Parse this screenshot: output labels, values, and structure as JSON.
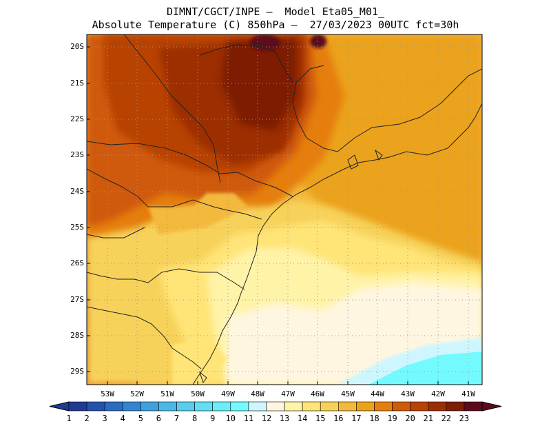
{
  "header": {
    "line1": "DIMNT/CGCT/INPE –  Model Eta05_M01_",
    "line2": "Absolute Temperature (C) 850hPa –  27/03/2023 00UTC fct=30h"
  },
  "axes": {
    "lat_labels": [
      "20S",
      "21S",
      "22S",
      "23S",
      "24S",
      "25S",
      "26S",
      "27S",
      "28S",
      "29S"
    ],
    "lon_labels": [
      "53W",
      "52W",
      "51W",
      "50W",
      "49W",
      "48W",
      "47W",
      "46W",
      "45W",
      "44W",
      "43W",
      "42W",
      "41W"
    ]
  },
  "colorbar": {
    "labels": [
      "1",
      "2",
      "3",
      "4",
      "5",
      "6",
      "7",
      "8",
      "9",
      "10",
      "11",
      "12",
      "13",
      "14",
      "15",
      "16",
      "17",
      "18",
      "19",
      "20",
      "21",
      "22",
      "23"
    ],
    "colors": [
      "#1f3a93",
      "#2452a8",
      "#2b6cbf",
      "#3385d0",
      "#3fa0de",
      "#4cb8e6",
      "#58cdec",
      "#62dff2",
      "#6cecf6",
      "#73faff",
      "#cdf6ff",
      "#fff6e1",
      "#fff3a8",
      "#ffe477",
      "#f7d25a",
      "#f2b93c",
      "#eba21b",
      "#e57e10",
      "#cf5a08",
      "#b84306",
      "#9c2e05",
      "#7d1f06",
      "#5c0b1c"
    ]
  },
  "map": {
    "region": "South-Southeast Brazil",
    "colors": {
      "frame": "#000000",
      "grid": "#9a9a9a",
      "coast": "#222222"
    }
  }
}
